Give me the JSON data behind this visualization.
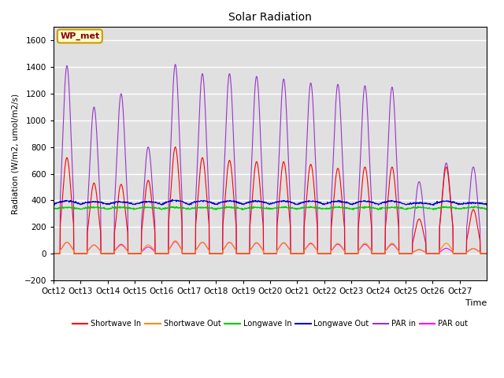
{
  "title": "Solar Radiation",
  "ylabel": "Radiation (W/m2, umol/m2/s)",
  "xlabel": "Time",
  "ylim": [
    -200,
    1700
  ],
  "yticks": [
    -200,
    0,
    200,
    400,
    600,
    800,
    1000,
    1200,
    1400,
    1600
  ],
  "xtick_labels": [
    "Oct 12",
    "Oct 13",
    "Oct 14",
    "Oct 15",
    "Oct 16",
    "Oct 17",
    "Oct 18",
    "Oct 19",
    "Oct 20",
    "Oct 21",
    "Oct 22",
    "Oct 23",
    "Oct 24",
    "Oct 25",
    "Oct 26",
    "Oct 27"
  ],
  "annotation_text": "WP_met",
  "annotation_box_facecolor": "#FFFFCC",
  "annotation_box_edgecolor": "#CC9900",
  "annotation_box_textcolor": "#880000",
  "bg_color": "#E0E0E0",
  "series": {
    "shortwave_in": {
      "color": "#FF0000",
      "label": "Shortwave In"
    },
    "shortwave_out": {
      "color": "#FF8C00",
      "label": "Shortwave Out"
    },
    "longwave_in": {
      "color": "#00CC00",
      "label": "Longwave In"
    },
    "longwave_out": {
      "color": "#0000CC",
      "label": "Longwave Out"
    },
    "par_in": {
      "color": "#9933CC",
      "label": "PAR in"
    },
    "par_out": {
      "color": "#FF00FF",
      "label": "PAR out"
    }
  },
  "n_days": 16,
  "points_per_day": 96,
  "longwave_in_base": 335,
  "longwave_out_base": 370,
  "shortwave_peaks": [
    720,
    530,
    520,
    550,
    800,
    720,
    700,
    690,
    690,
    670,
    640,
    650,
    650,
    260,
    650,
    330
  ],
  "par_in_peaks": [
    1410,
    1100,
    1200,
    800,
    1420,
    1350,
    1350,
    1330,
    1310,
    1280,
    1270,
    1260,
    1250,
    540,
    680,
    650
  ],
  "par_out_peaks": [
    85,
    65,
    70,
    50,
    90,
    85,
    85,
    80,
    80,
    75,
    70,
    70,
    70,
    30,
    40,
    38
  ],
  "shortwave_out_factor": 0.12
}
